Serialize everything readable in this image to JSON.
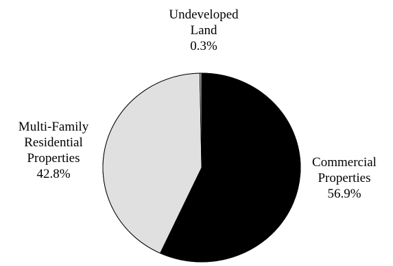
{
  "chart_data": {
    "type": "pie",
    "start_angle_deg": 0,
    "direction": "clockwise",
    "slices": [
      {
        "label_lines": [
          "Commercial",
          "Properties"
        ],
        "value": 56.9,
        "value_text": "56.9%",
        "color": "#000000"
      },
      {
        "label_lines": [
          "Multi-Family",
          "Residential",
          "Properties"
        ],
        "value": 42.8,
        "value_text": "42.8%",
        "color": "#e0e0e0"
      },
      {
        "label_lines": [
          "Undeveloped",
          "Land"
        ],
        "value": 0.3,
        "value_text": "0.3%",
        "color": "#a8a8a8"
      }
    ],
    "outline_color": "#000000"
  }
}
